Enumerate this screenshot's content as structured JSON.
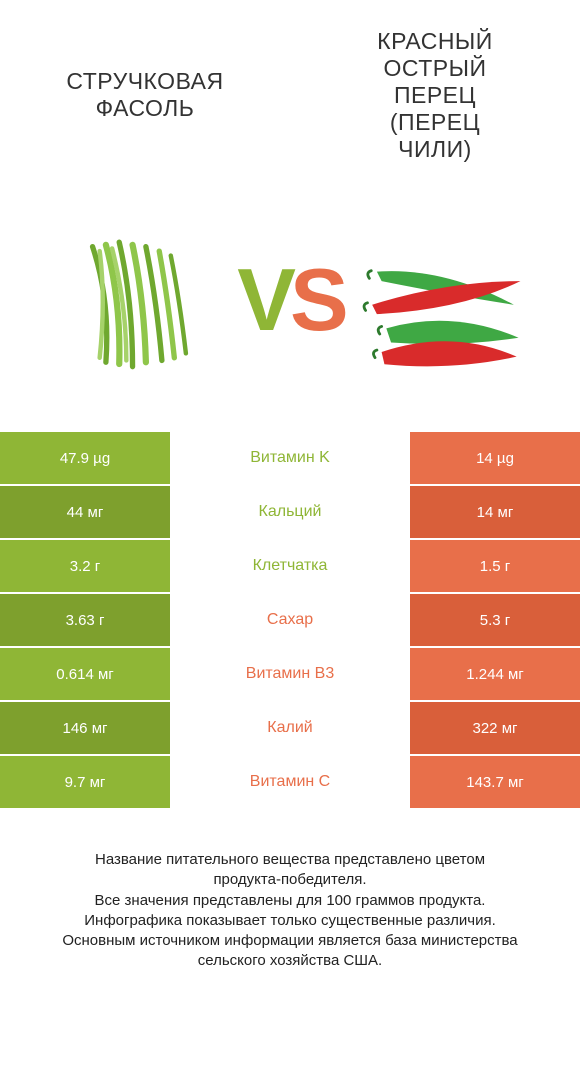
{
  "colors": {
    "green": "#8fb636",
    "orange": "#e86f4a",
    "green_dark": "#7ea02d",
    "orange_dark": "#d95f3a",
    "white": "#ffffff",
    "text": "#333333"
  },
  "title_fontsize": 23,
  "left_product": {
    "title_lines": [
      "СТРУЧКОВАЯ",
      "ФАСОЛЬ"
    ]
  },
  "right_product": {
    "title_lines": [
      "КРАСНЫЙ",
      "ОСТРЫЙ",
      "ПЕРЕЦ",
      "(ПЕРЕЦ",
      "ЧИЛИ)"
    ]
  },
  "vs": {
    "v": "V",
    "s": "S"
  },
  "rows": [
    {
      "nutrient": "Витамин K",
      "left": "47.9 µg",
      "right": "14 µg",
      "winner": "left"
    },
    {
      "nutrient": "Кальций",
      "left": "44 мг",
      "right": "14 мг",
      "winner": "left"
    },
    {
      "nutrient": "Клетчатка",
      "left": "3.2 г",
      "right": "1.5 г",
      "winner": "left"
    },
    {
      "nutrient": "Сахар",
      "left": "3.63 г",
      "right": "5.3 г",
      "winner": "right"
    },
    {
      "nutrient": "Витамин B3",
      "left": "0.614 мг",
      "right": "1.244 мг",
      "winner": "right"
    },
    {
      "nutrient": "Калий",
      "left": "146 мг",
      "right": "322 мг",
      "winner": "right"
    },
    {
      "nutrient": "Витамин C",
      "left": "9.7 мг",
      "right": "143.7 мг",
      "winner": "right"
    }
  ],
  "footer_lines": [
    "Название питательного вещества представлено цветом",
    "продукта-победителя.",
    "Все значения представлены для 100 граммов продукта.",
    "Инфографика показывает только существенные различия.",
    "Основным источником информации является база министерства",
    "сельского хозяйства США."
  ]
}
